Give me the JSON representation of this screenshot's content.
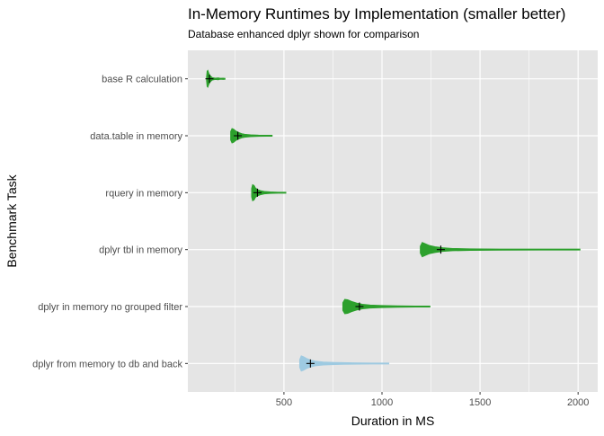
{
  "chart_data": {
    "type": "violin",
    "title": "In-Memory Runtimes by Implementation (smaller better)",
    "subtitle": "Database enhanced dplyr shown for comparison",
    "xlabel": "Duration in MS",
    "ylabel": "Benchmark Task",
    "xlim": [
      10,
      2100
    ],
    "x_ticks": [
      500,
      1000,
      1500,
      2000
    ],
    "x_tick_labels": [
      "500",
      "1000",
      "1500",
      "2000"
    ],
    "grid": true,
    "colors": {
      "panel": "#e5e5e5",
      "grid": "#ffffff",
      "in_memory": "#2ca02c",
      "database": "#9ecae1",
      "mean_marker": "#000000"
    },
    "categories": [
      "base R calculation",
      "data.table in memory",
      "rquery in memory",
      "dplyr tbl in memory",
      "dplyr in memory no grouped filter",
      "dplyr from memory to db and back"
    ],
    "series": [
      {
        "category": "base R calculation",
        "color": "#2ca02c",
        "min": 105,
        "max": 200,
        "mean": 120,
        "shape": [
          [
            105,
            0.2
          ],
          [
            108,
            0.9
          ],
          [
            112,
            1.0
          ],
          [
            118,
            0.6
          ],
          [
            125,
            0.35
          ],
          [
            135,
            0.15
          ],
          [
            150,
            0.08
          ],
          [
            165,
            0.12
          ],
          [
            175,
            0.05
          ],
          [
            190,
            0.08
          ],
          [
            200,
            0.03
          ]
        ]
      },
      {
        "category": "data.table in memory",
        "color": "#2ca02c",
        "min": 228,
        "max": 440,
        "mean": 265,
        "shape": [
          [
            228,
            0.5
          ],
          [
            235,
            0.85
          ],
          [
            245,
            0.75
          ],
          [
            255,
            0.55
          ],
          [
            270,
            0.38
          ],
          [
            285,
            0.25
          ],
          [
            300,
            0.18
          ],
          [
            330,
            0.12
          ],
          [
            370,
            0.08
          ],
          [
            410,
            0.05
          ],
          [
            440,
            0.02
          ]
        ]
      },
      {
        "category": "rquery in memory",
        "color": "#2ca02c",
        "min": 335,
        "max": 510,
        "mean": 365,
        "shape": [
          [
            335,
            0.5
          ],
          [
            340,
            0.95
          ],
          [
            348,
            0.85
          ],
          [
            355,
            0.55
          ],
          [
            365,
            0.38
          ],
          [
            380,
            0.25
          ],
          [
            400,
            0.15
          ],
          [
            430,
            0.1
          ],
          [
            470,
            0.06
          ],
          [
            500,
            0.04
          ],
          [
            510,
            0.02
          ]
        ]
      },
      {
        "category": "dplyr tbl in memory",
        "color": "#2ca02c",
        "min": 1195,
        "max": 2010,
        "mean": 1300,
        "shape": [
          [
            1195,
            0.4
          ],
          [
            1205,
            0.85
          ],
          [
            1220,
            0.7
          ],
          [
            1240,
            0.5
          ],
          [
            1270,
            0.35
          ],
          [
            1310,
            0.22
          ],
          [
            1360,
            0.14
          ],
          [
            1450,
            0.1
          ],
          [
            1600,
            0.07
          ],
          [
            1800,
            0.05
          ],
          [
            2010,
            0.02
          ]
        ]
      },
      {
        "category": "dplyr in memory no grouped filter",
        "color": "#2ca02c",
        "min": 800,
        "max": 1245,
        "mean": 885,
        "shape": [
          [
            800,
            0.45
          ],
          [
            810,
            0.85
          ],
          [
            825,
            0.8
          ],
          [
            845,
            0.6
          ],
          [
            870,
            0.42
          ],
          [
            900,
            0.28
          ],
          [
            940,
            0.18
          ],
          [
            1000,
            0.13
          ],
          [
            1080,
            0.09
          ],
          [
            1170,
            0.06
          ],
          [
            1245,
            0.02
          ]
        ]
      },
      {
        "category": "dplyr from memory to db and back",
        "color": "#9ecae1",
        "min": 580,
        "max": 1035,
        "mean": 635,
        "shape": [
          [
            580,
            0.45
          ],
          [
            588,
            0.9
          ],
          [
            600,
            0.8
          ],
          [
            615,
            0.6
          ],
          [
            635,
            0.42
          ],
          [
            660,
            0.28
          ],
          [
            700,
            0.18
          ],
          [
            760,
            0.13
          ],
          [
            850,
            0.09
          ],
          [
            950,
            0.06
          ],
          [
            1035,
            0.02
          ]
        ]
      }
    ]
  }
}
